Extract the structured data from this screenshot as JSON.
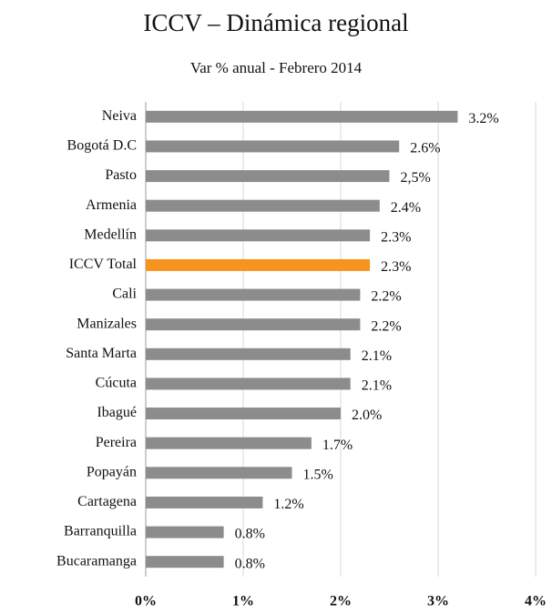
{
  "chart_data": {
    "type": "bar",
    "orientation": "horizontal",
    "title": "ICCV – Dinámica regional",
    "subtitle": "Var % anual  - Febrero 2014",
    "categories": [
      "Neiva",
      "Bogotá D.C",
      "Pasto",
      "Armenia",
      "Medellín",
      "ICCV Total",
      "Cali",
      "Manizales",
      "Santa Marta",
      "Cúcuta",
      "Ibagué",
      "Pereira",
      "Popayán",
      "Cartagena",
      "Barranquilla",
      "Bucaramanga"
    ],
    "values": [
      3.2,
      2.6,
      2.5,
      2.4,
      2.3,
      2.3,
      2.2,
      2.2,
      2.1,
      2.1,
      2.0,
      1.7,
      1.5,
      1.2,
      0.8,
      0.8
    ],
    "value_labels": [
      "3.2%",
      "2.6%",
      "2,5%",
      "2.4%",
      "2.3%",
      "2.3%",
      "2.2%",
      "2.2%",
      "2.1%",
      "2.1%",
      "2.0%",
      "1.7%",
      "1.5%",
      "1.2%",
      "0.8%",
      "0.8%"
    ],
    "colors": [
      "#8c8c8c",
      "#8c8c8c",
      "#8c8c8c",
      "#8c8c8c",
      "#8c8c8c",
      "#f7941d",
      "#8c8c8c",
      "#8c8c8c",
      "#8c8c8c",
      "#8c8c8c",
      "#8c8c8c",
      "#8c8c8c",
      "#8c8c8c",
      "#8c8c8c",
      "#8c8c8c",
      "#8c8c8c"
    ],
    "xlim": [
      0,
      4
    ],
    "xticks": [
      {
        "value": 0,
        "label": "0%"
      },
      {
        "value": 1,
        "label": "1%"
      },
      {
        "value": 2,
        "label": "2%"
      },
      {
        "value": 3,
        "label": "3%"
      },
      {
        "value": 4,
        "label": "4%"
      }
    ],
    "grid": true
  }
}
